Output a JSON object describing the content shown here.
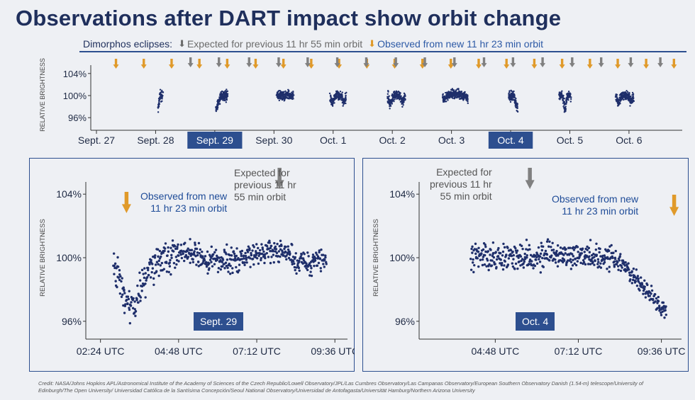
{
  "title": "Observations after DART impact show orbit change",
  "legend": {
    "label": "Dimorphos eclipses:",
    "expected": "Expected for previous 11 hr 55 min orbit",
    "observed": "Observed from new 11 hr 23 min orbit",
    "expected_arrow": "⬇",
    "observed_arrow": "⬇"
  },
  "colors": {
    "data": "#1f2f6b",
    "expected_arrow": "#808080",
    "observed_arrow": "#e09a2a",
    "frame": "#2d4f8f",
    "badge": "#2d4f8f",
    "background": "#eef0f4"
  },
  "chart_data": [
    {
      "id": "overview",
      "type": "scatter",
      "ylabel": "RELATIVE BRIGHTNESS",
      "ylim": [
        95,
        105
      ],
      "yticks": [
        "104%",
        "100%",
        "96%"
      ],
      "ytick_values": [
        104,
        100,
        96
      ],
      "xlim": [
        0,
        9.9
      ],
      "xticks": [
        "Sept. 27",
        "Sept. 28",
        "Sept. 29",
        "Sept. 30",
        "Oct. 1",
        "Oct. 2",
        "Oct. 3",
        "Oct. 4",
        "Oct. 5",
        "Oct. 6"
      ],
      "xtick_values": [
        0,
        1,
        2,
        3,
        4,
        5,
        6,
        7,
        8,
        9
      ],
      "highlighted_ticks": [
        "Sept. 29",
        "Oct. 4"
      ],
      "observation_windows": [
        {
          "day_start": 1.04,
          "day_end": 1.12,
          "profile": "dip_start"
        },
        {
          "day_start": 2.02,
          "day_end": 2.22,
          "profile": "dip_start"
        },
        {
          "day_start": 3.05,
          "day_end": 3.33,
          "profile": "flat"
        },
        {
          "day_start": 3.95,
          "day_end": 4.22,
          "profile": "double_dip"
        },
        {
          "day_start": 4.92,
          "day_end": 5.22,
          "profile": "double_dip"
        },
        {
          "day_start": 5.85,
          "day_end": 6.28,
          "profile": "hump"
        },
        {
          "day_start": 6.97,
          "day_end": 7.12,
          "profile": "dip_end"
        },
        {
          "day_start": 7.82,
          "day_end": 8.02,
          "profile": "dip_mid"
        },
        {
          "day_start": 8.78,
          "day_end": 9.08,
          "profile": "double_dip"
        }
      ],
      "expected_eclipses": [
        1.59,
        2.07,
        2.58,
        3.08,
        3.57,
        4.07,
        4.56,
        5.06,
        5.55,
        6.05,
        6.55,
        7.04,
        7.54,
        8.04,
        8.53,
        9.03,
        9.53
      ],
      "observed_eclipses": [
        0.33,
        0.8,
        1.27,
        1.74,
        2.21,
        2.69,
        3.16,
        3.63,
        4.1,
        4.57,
        5.04,
        5.51,
        5.99,
        6.46,
        6.93,
        7.4,
        7.87,
        8.34,
        8.81,
        9.29,
        9.76
      ]
    },
    {
      "id": "sept29",
      "type": "scatter",
      "label": "Sept. 29",
      "ylabel": "RELATIVE BRIGHTNESS",
      "ylim": [
        95.5,
        104.5
      ],
      "yticks": [
        "104%",
        "100%",
        "96%"
      ],
      "ytick_values": [
        104,
        100,
        96
      ],
      "xlim": [
        1.95,
        9.9
      ],
      "xticks": [
        "02:24 UTC",
        "04:48 UTC",
        "07:12 UTC",
        "09:36 UTC"
      ],
      "xtick_values": [
        2.4,
        4.8,
        7.2,
        9.6
      ],
      "data_start_hr": 2.8,
      "data_end_hr": 9.35,
      "observed_eclipse_hr": 3.2,
      "expected_eclipse_hr": 7.9,
      "annotations": {
        "observed": [
          "Observed from new",
          "11 hr 23 min orbit"
        ],
        "expected": [
          "Expected for",
          "previous 11 hr",
          "55 min orbit"
        ]
      }
    },
    {
      "id": "oct4",
      "type": "scatter",
      "label": "Oct. 4",
      "ylabel": "RELATIVE BRIGHTNESS",
      "ylim": [
        95.5,
        104.5
      ],
      "yticks": [
        "104%",
        "100%",
        "96%"
      ],
      "ytick_values": [
        104,
        100,
        96
      ],
      "xlim": [
        2.6,
        10.1
      ],
      "xticks": [
        "04:48 UTC",
        "07:12 UTC",
        "09:36 UTC"
      ],
      "xtick_values": [
        4.8,
        7.2,
        9.6
      ],
      "data_start_hr": 4.1,
      "data_end_hr": 9.75,
      "expected_eclipse_hr": 5.8,
      "observed_eclipse_hr": 9.6,
      "annotations": {
        "expected": [
          "Expected for",
          "previous 11 hr",
          "55 min orbit"
        ],
        "observed": [
          "Observed from new",
          "11 hr 23 min orbit"
        ]
      }
    }
  ],
  "credit": "Credit: NASA/Johns Hopkins APL/Astronomical Institute of the Academy of Sciences of the Czech Republic/Lowell Observatory/JPL/Las Cumbres Observatory/Las Campanas Observatory/European Southern Observatory Danish (1.54-m) telescope/University of Edinburgh/The Open University/ Universidad Católica de la Santísima Concepción/Seoul National Observatory/Universidad de Antofagasta/Universität Hamburg/Northern Arizona University"
}
